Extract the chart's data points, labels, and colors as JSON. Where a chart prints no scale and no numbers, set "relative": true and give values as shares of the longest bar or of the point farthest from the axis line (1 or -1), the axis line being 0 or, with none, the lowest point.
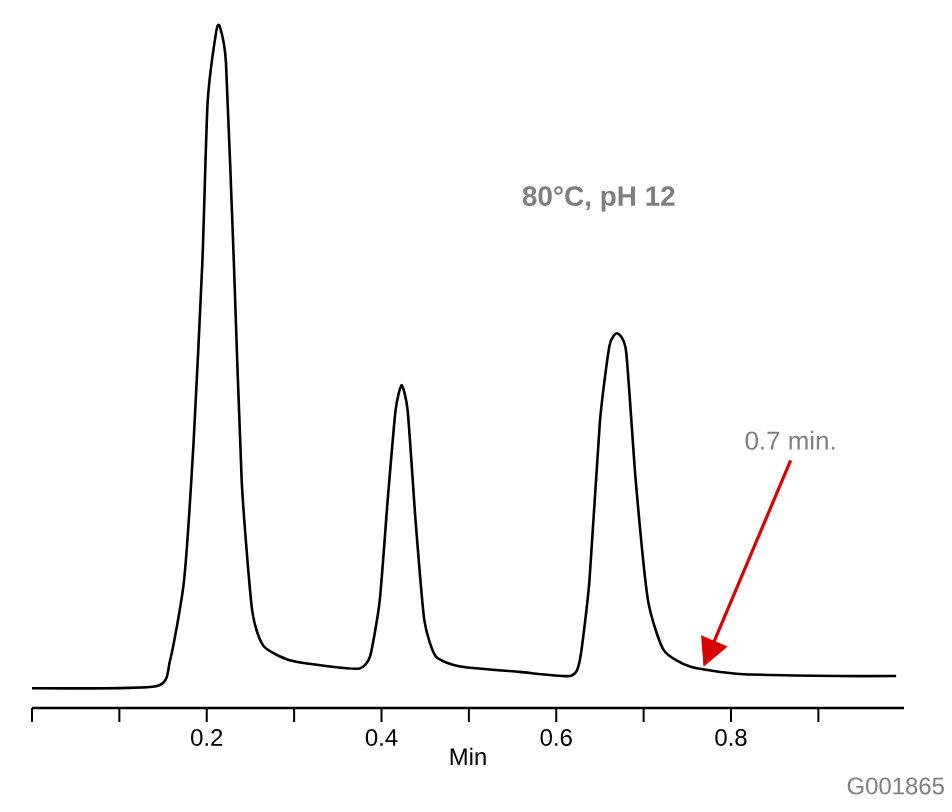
{
  "chart_data": {
    "type": "line",
    "relative": true,
    "xlabel": "Min",
    "tick_labels": "x",
    "xlim": [
      0,
      0.998
    ],
    "xticks": [
      {
        "value": 0,
        "label": null
      },
      {
        "value": 0.1,
        "label": null
      },
      0.2,
      {
        "value": 0.3,
        "label": null
      },
      0.4,
      {
        "value": 0.5,
        "label": null
      },
      0.6,
      {
        "value": 0.7,
        "label": null
      },
      0.8,
      {
        "value": 0.9,
        "label": null
      }
    ],
    "series": [
      {
        "color": "#000000",
        "x": [
          0,
          0.142,
          0.158,
          0.174,
          0.185,
          0.195,
          0.201,
          0.211,
          0.215,
          0.222,
          0.231,
          0.24,
          0.252,
          0.265,
          0.295,
          0.341,
          0.375,
          0.387,
          0.398,
          0.407,
          0.416,
          0.423,
          0.43,
          0.439,
          0.449,
          0.462,
          0.49,
          0.558,
          0.616,
          0.627,
          0.638,
          0.65,
          0.661,
          0.67,
          0.68,
          0.691,
          0.705,
          0.723,
          0.753,
          0.81,
          0.924,
          0.989
        ],
        "values": [
          0.029,
          0.032,
          0.07,
          0.187,
          0.392,
          0.655,
          0.889,
          0.994,
          1,
          0.947,
          0.655,
          0.333,
          0.143,
          0.091,
          0.07,
          0.061,
          0.058,
          0.076,
          0.158,
          0.304,
          0.436,
          0.474,
          0.436,
          0.275,
          0.129,
          0.076,
          0.061,
          0.053,
          0.047,
          0.07,
          0.187,
          0.421,
          0.532,
          0.55,
          0.523,
          0.333,
          0.158,
          0.085,
          0.061,
          0.05,
          0.047,
          0.047
        ]
      }
    ],
    "annotations": [
      "**80°C, pH 12**",
      "0.7 min.",
      "G001865"
    ]
  }
}
